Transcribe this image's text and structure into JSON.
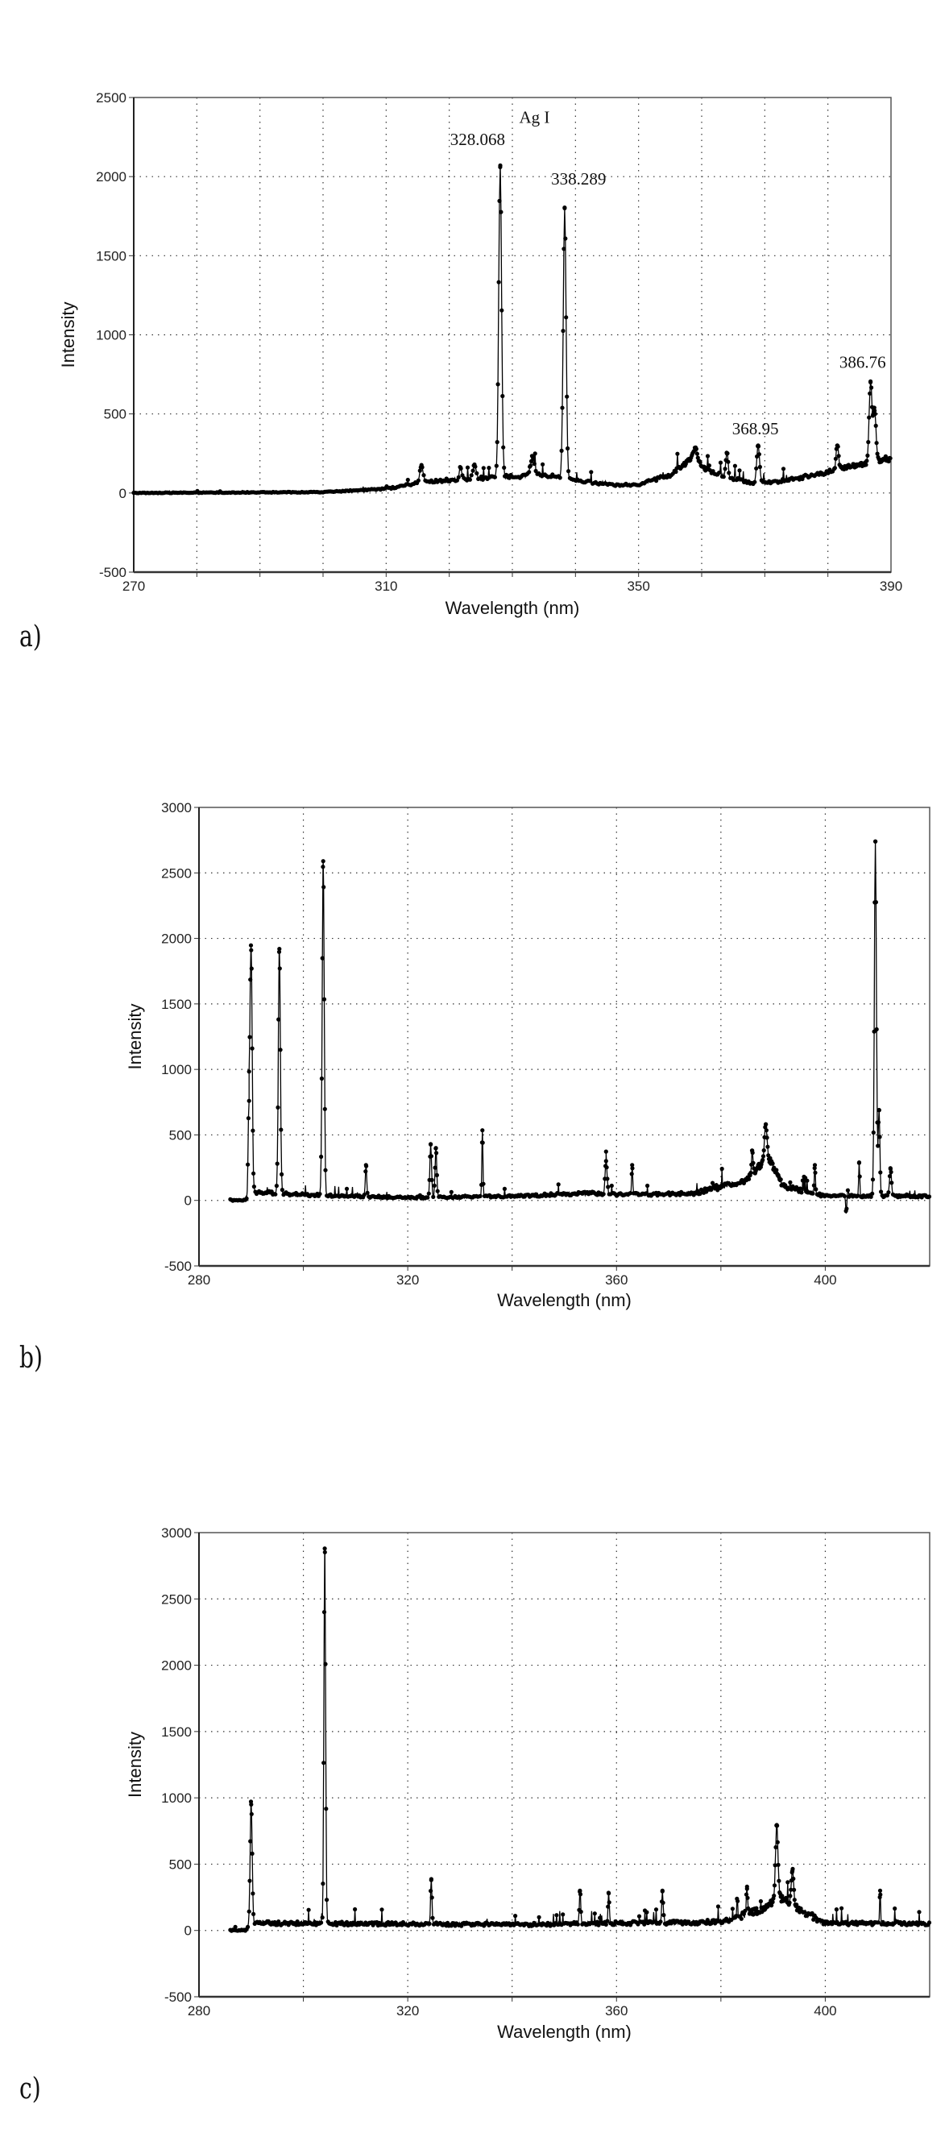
{
  "figure": {
    "panels": [
      {
        "label": "a)"
      },
      {
        "label": "b)"
      },
      {
        "label": "c)"
      }
    ]
  },
  "chart_data": [
    {
      "panel": "a)",
      "type": "line",
      "title": "",
      "xlabel": "Wavelength (nm)",
      "ylabel": "Intensity",
      "xlim": [
        270,
        390
      ],
      "ylim": [
        -500,
        2500
      ],
      "xticks": [
        270,
        310,
        350,
        390
      ],
      "x_minor_grid_step": 10,
      "yticks": [
        -500,
        0,
        500,
        1000,
        1500,
        2000,
        2500
      ],
      "grid": true,
      "markers": "filled-circle",
      "line_color": "#000000",
      "annotations": [
        {
          "text": "Ag I",
          "x": 333.5,
          "y": 2340
        },
        {
          "text": "328.068",
          "x": 324.5,
          "y": 2200
        },
        {
          "text": "338.289",
          "x": 340.5,
          "y": 1950
        },
        {
          "text": "368.95",
          "x": 368.5,
          "y": 370
        },
        {
          "text": "386.76",
          "x": 385.5,
          "y": 790
        }
      ],
      "data_range": [
        270,
        390
      ],
      "baseline": [
        [
          270,
          0
        ],
        [
          300,
          5
        ],
        [
          310,
          25
        ],
        [
          315,
          60
        ],
        [
          320,
          80
        ],
        [
          330,
          100
        ],
        [
          335,
          110
        ],
        [
          340,
          80
        ],
        [
          345,
          50
        ],
        [
          350,
          50
        ],
        [
          355,
          110
        ],
        [
          358,
          200
        ],
        [
          362,
          120
        ],
        [
          368,
          60
        ],
        [
          372,
          70
        ],
        [
          378,
          110
        ],
        [
          383,
          160
        ],
        [
          390,
          210
        ]
      ],
      "noise": 25,
      "peaks": [
        {
          "x": 315.6,
          "y": 170,
          "w": 0.4
        },
        {
          "x": 321.8,
          "y": 160,
          "w": 0.3
        },
        {
          "x": 324.0,
          "y": 180,
          "w": 0.4
        },
        {
          "x": 328.07,
          "y": 2060,
          "w": 0.35
        },
        {
          "x": 333.2,
          "y": 230,
          "w": 0.5
        },
        {
          "x": 338.29,
          "y": 1800,
          "w": 0.35
        },
        {
          "x": 359.0,
          "y": 280,
          "w": 0.6
        },
        {
          "x": 364.0,
          "y": 250,
          "w": 0.3
        },
        {
          "x": 368.95,
          "y": 300,
          "w": 0.35
        },
        {
          "x": 381.5,
          "y": 300,
          "w": 0.3
        },
        {
          "x": 386.76,
          "y": 700,
          "w": 0.35
        },
        {
          "x": 387.4,
          "y": 520,
          "w": 0.35
        }
      ]
    },
    {
      "panel": "b)",
      "type": "line",
      "title": "",
      "xlabel": "Wavelength (nm)",
      "ylabel": "Intensity",
      "xlim": [
        280,
        420
      ],
      "ylim": [
        -500,
        3000
      ],
      "xticks": [
        280,
        320,
        360,
        400
      ],
      "x_minor_grid_step": 20,
      "yticks": [
        -500,
        0,
        500,
        1000,
        1500,
        2000,
        2500,
        3000
      ],
      "grid": true,
      "markers": "filled-circle",
      "line_color": "#000000",
      "annotations": [],
      "data_range": [
        286,
        420
      ],
      "baseline": [
        [
          286,
          0
        ],
        [
          289,
          0
        ],
        [
          290,
          60
        ],
        [
          300,
          40
        ],
        [
          320,
          20
        ],
        [
          340,
          30
        ],
        [
          355,
          50
        ],
        [
          360,
          40
        ],
        [
          375,
          50
        ],
        [
          385,
          150
        ],
        [
          389,
          330
        ],
        [
          392,
          100
        ],
        [
          400,
          30
        ],
        [
          420,
          30
        ]
      ],
      "noise": 45,
      "peaks": [
        {
          "x": 290.0,
          "y": 1910,
          "w": 0.3
        },
        {
          "x": 289.6,
          "y": 760,
          "w": 0.25
        },
        {
          "x": 295.4,
          "y": 1920,
          "w": 0.3
        },
        {
          "x": 303.8,
          "y": 2590,
          "w": 0.3
        },
        {
          "x": 312.0,
          "y": 270,
          "w": 0.2
        },
        {
          "x": 324.4,
          "y": 430,
          "w": 0.25
        },
        {
          "x": 325.4,
          "y": 400,
          "w": 0.25
        },
        {
          "x": 334.3,
          "y": 535,
          "w": 0.15
        },
        {
          "x": 358.0,
          "y": 300,
          "w": 0.3
        },
        {
          "x": 363.0,
          "y": 270,
          "w": 0.15
        },
        {
          "x": 386.0,
          "y": 380,
          "w": 0.2
        },
        {
          "x": 388.6,
          "y": 580,
          "w": 0.35
        },
        {
          "x": 398.0,
          "y": 270,
          "w": 0.15
        },
        {
          "x": 404.0,
          "y": -100,
          "w": 0.15
        },
        {
          "x": 406.5,
          "y": 290,
          "w": 0.15
        },
        {
          "x": 409.6,
          "y": 2740,
          "w": 0.3
        },
        {
          "x": 410.3,
          "y": 690,
          "w": 0.25
        },
        {
          "x": 412.5,
          "y": 240,
          "w": 0.3
        }
      ]
    },
    {
      "panel": "c)",
      "type": "line",
      "title": "",
      "xlabel": "Wavelength (nm)",
      "ylabel": "Intensity",
      "xlim": [
        280,
        420
      ],
      "ylim": [
        -500,
        3000
      ],
      "xticks": [
        280,
        320,
        360,
        400
      ],
      "x_minor_grid_step": 20,
      "yticks": [
        -500,
        0,
        500,
        1000,
        1500,
        2000,
        2500,
        3000
      ],
      "grid": true,
      "markers": "filled-circle",
      "line_color": "#000000",
      "annotations": [],
      "data_range": [
        286,
        420
      ],
      "baseline": [
        [
          286,
          0
        ],
        [
          289,
          0
        ],
        [
          290,
          50
        ],
        [
          300,
          50
        ],
        [
          340,
          40
        ],
        [
          380,
          60
        ],
        [
          388,
          150
        ],
        [
          391,
          250
        ],
        [
          395,
          150
        ],
        [
          400,
          50
        ],
        [
          420,
          50
        ]
      ],
      "noise": 50,
      "peaks": [
        {
          "x": 290.0,
          "y": 950,
          "w": 0.3
        },
        {
          "x": 304.1,
          "y": 2880,
          "w": 0.25
        },
        {
          "x": 324.5,
          "y": 380,
          "w": 0.2
        },
        {
          "x": 353.0,
          "y": 300,
          "w": 0.2
        },
        {
          "x": 358.5,
          "y": 280,
          "w": 0.2
        },
        {
          "x": 368.8,
          "y": 300,
          "w": 0.2
        },
        {
          "x": 385.0,
          "y": 330,
          "w": 0.2
        },
        {
          "x": 390.7,
          "y": 795,
          "w": 0.35
        },
        {
          "x": 393.7,
          "y": 450,
          "w": 0.35
        },
        {
          "x": 410.5,
          "y": 300,
          "w": 0.15
        }
      ]
    }
  ]
}
